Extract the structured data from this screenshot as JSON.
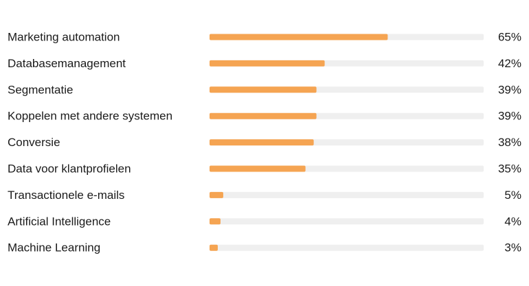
{
  "chart_data": {
    "type": "bar",
    "orientation": "horizontal",
    "categories": [
      "Marketing automation",
      "Databasemanagement",
      "Segmentatie",
      "Koppelen met andere systemen",
      "Conversie",
      "Data voor klantprofielen",
      "Transactionele e-mails",
      "Artificial Intelligence",
      "Machine Learning"
    ],
    "values": [
      65,
      42,
      39,
      39,
      38,
      35,
      5,
      4,
      3
    ],
    "value_labels": [
      "65%",
      "42%",
      "39%",
      "39%",
      "38%",
      "35%",
      "5%",
      "4%",
      "3%"
    ],
    "xlim": [
      0,
      100
    ],
    "grid": false,
    "legend": "none"
  },
  "colors": {
    "bar": "#f5a452",
    "track": "#efefef",
    "text": "#1a1a1a"
  }
}
